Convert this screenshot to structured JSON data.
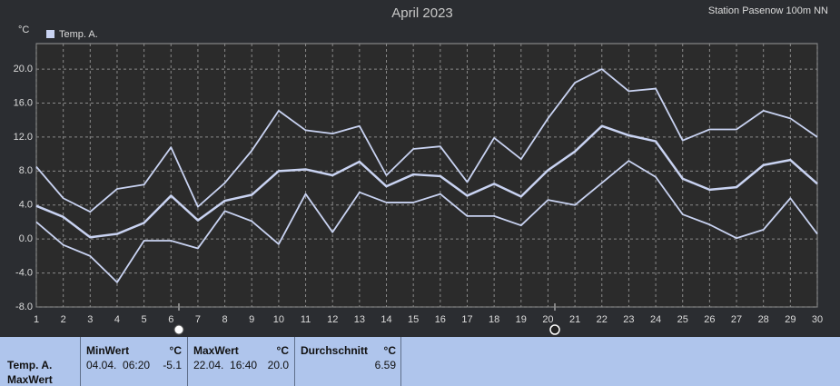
{
  "chart_data": {
    "type": "line",
    "title": "April 2023",
    "subtitle": "Station Pasenow 100m NN",
    "y_unit": "°C",
    "legend_label": "Temp. A.",
    "x": [
      1,
      2,
      3,
      4,
      5,
      6,
      7,
      8,
      9,
      10,
      11,
      12,
      13,
      14,
      15,
      16,
      17,
      18,
      19,
      20,
      21,
      22,
      23,
      24,
      25,
      26,
      27,
      28,
      29,
      30
    ],
    "xlim": [
      1,
      30
    ],
    "ylim": [
      -8,
      23
    ],
    "yticks": [
      {
        "value": -8,
        "label": "-8.0"
      },
      {
        "value": -4,
        "label": "-4.0"
      },
      {
        "value": 0,
        "label": "0.0"
      },
      {
        "value": 4,
        "label": "4.0"
      },
      {
        "value": 8,
        "label": "8.0"
      },
      {
        "value": 12,
        "label": "12.0"
      },
      {
        "value": 16,
        "label": "16.0"
      },
      {
        "value": 20,
        "label": "20.0"
      }
    ],
    "grid": true,
    "series": [
      {
        "color": "#c9d3f2",
        "values": [
          8.5,
          4.8,
          3.2,
          5.9,
          6.4,
          10.8,
          3.8,
          6.6,
          10.4,
          15.1,
          12.8,
          12.4,
          13.3,
          7.5,
          10.6,
          10.9,
          6.7,
          11.9,
          9.4,
          14.2,
          18.4,
          20.0,
          17.4,
          17.7,
          11.6,
          12.9,
          12.9,
          15.1,
          14.2,
          12.0
        ]
      },
      {
        "color": "#c9d3f2",
        "values": [
          3.9,
          2.6,
          0.2,
          0.6,
          1.9,
          5.1,
          2.2,
          4.5,
          5.2,
          8.0,
          8.2,
          7.5,
          9.1,
          6.2,
          7.6,
          7.4,
          5.1,
          6.5,
          5.0,
          8.1,
          10.3,
          13.3,
          12.2,
          11.5,
          7.1,
          5.8,
          6.1,
          8.7,
          9.3,
          6.5
        ]
      },
      {
        "color": "#c9d3f2",
        "values": [
          2.0,
          -0.7,
          -2.0,
          -5.1,
          -0.2,
          -0.2,
          -1.1,
          3.3,
          2.1,
          -0.6,
          5.3,
          0.8,
          5.5,
          4.3,
          4.3,
          5.3,
          2.7,
          2.7,
          1.6,
          4.6,
          4.0,
          6.6,
          9.2,
          7.3,
          2.9,
          1.7,
          0.1,
          1.1,
          4.8,
          0.6
        ]
      }
    ]
  },
  "stats_table": {
    "row_label": "Temp. A.",
    "row_sublabel": "MaxWert",
    "columns": [
      {
        "header": "MinWert",
        "unit": "°C",
        "time": "04.04.  06:20",
        "value": "-5.1"
      },
      {
        "header": "MaxWert",
        "unit": "°C",
        "time": "22.04.  16:40",
        "value": "20.0"
      },
      {
        "header": "Durchschnitt",
        "unit": "°C",
        "value": "6.59"
      }
    ]
  }
}
